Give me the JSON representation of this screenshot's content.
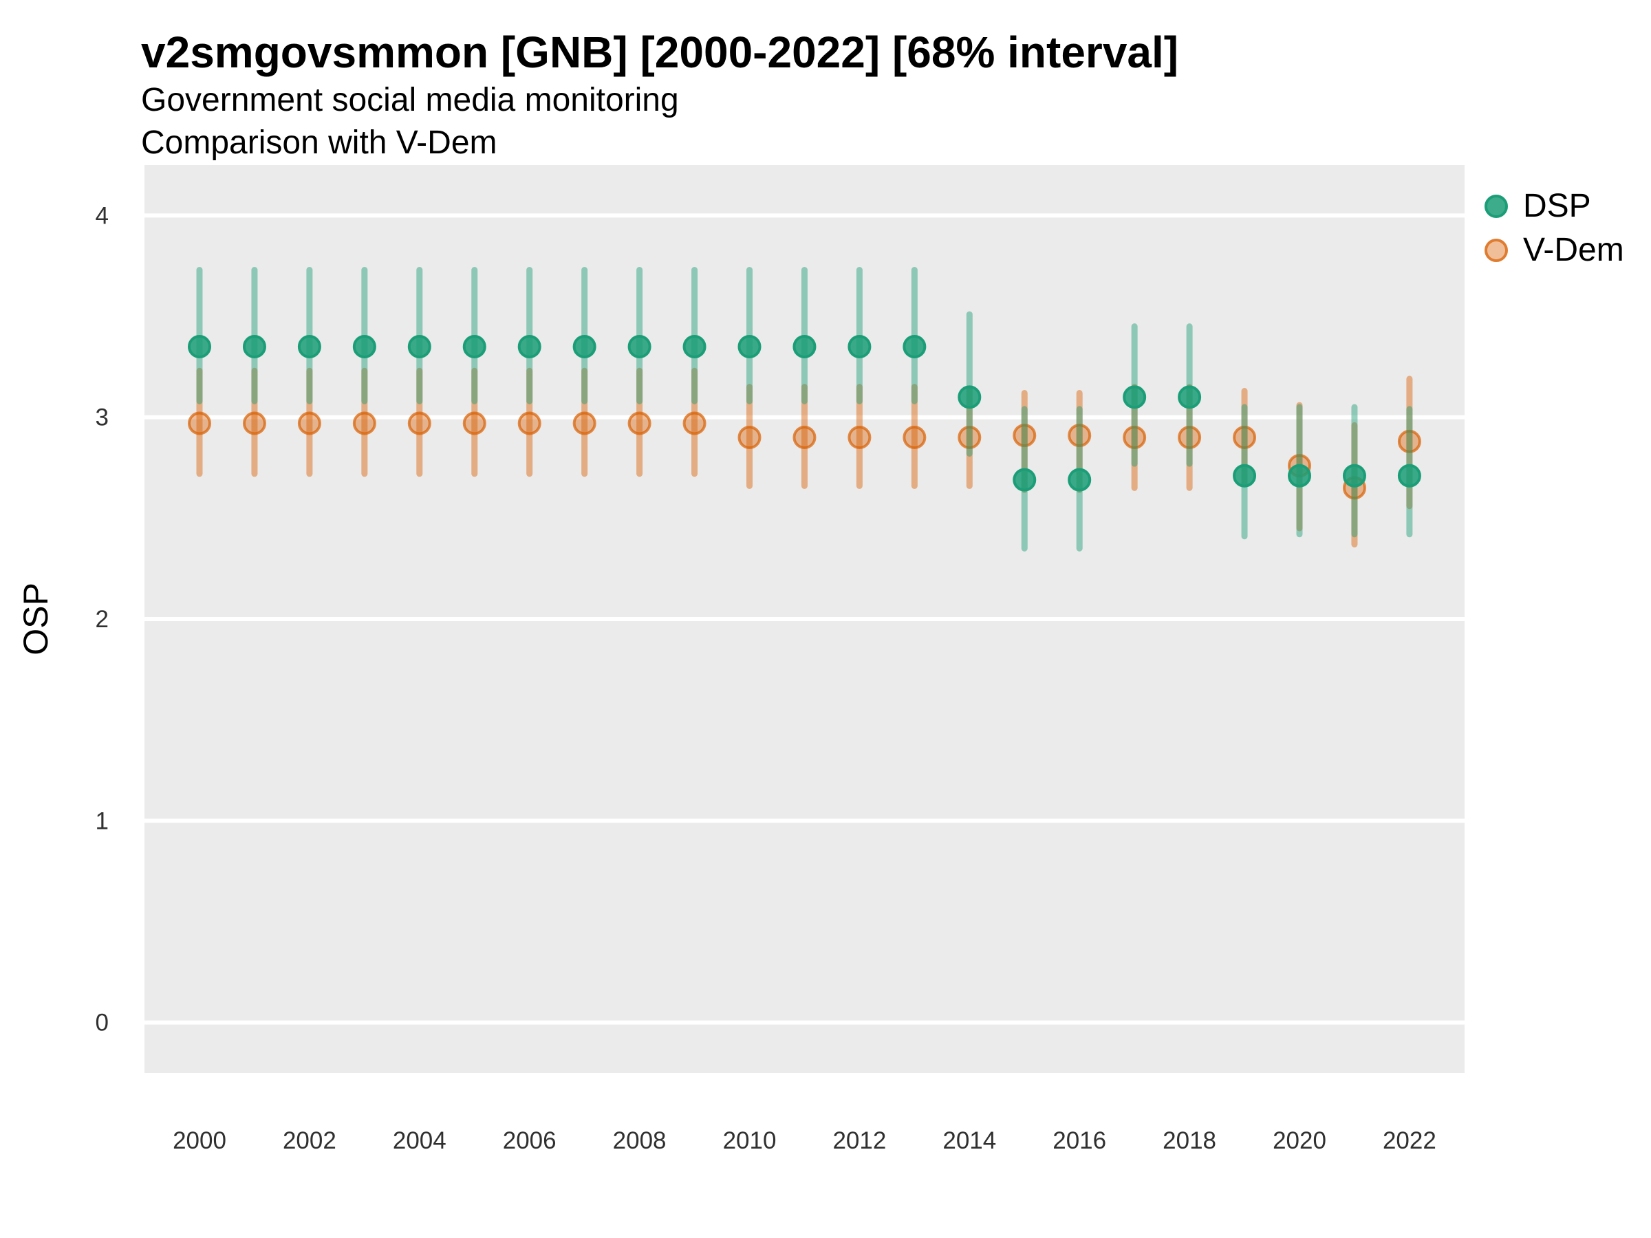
{
  "header": {
    "title": "v2smgovsmmon [GNB] [2000-2022] [68% interval]",
    "subtitle1": "Government social media monitoring",
    "subtitle2": "Comparison with V-Dem"
  },
  "axes": {
    "y_label": "OSP",
    "y_tick_labels": [
      "0",
      "1",
      "2",
      "3",
      "4"
    ],
    "x_tick_labels": [
      "2000",
      "2002",
      "2004",
      "2006",
      "2008",
      "2010",
      "2012",
      "2014",
      "2016",
      "2018",
      "2020",
      "2022"
    ]
  },
  "legend": {
    "items": [
      {
        "label": "DSP",
        "color": "#1B9E77"
      },
      {
        "label": "V-Dem",
        "color": "#D95F02"
      }
    ]
  },
  "colors": {
    "panel_background": "#EBEBEB",
    "gridline": "#FFFFFF",
    "tick_text": "#303030",
    "dsp_green": "#1B9E77",
    "vdem_orange": "#D95F02"
  },
  "chart_data": {
    "type": "pointrange",
    "title": "v2smgovsmmon [GNB] [2000-2022] [68% interval]",
    "subtitle": "Government social media monitoring / Comparison with V-Dem",
    "interval_level": "68%",
    "xlabel": "",
    "ylabel": "OSP",
    "ylim": [
      -0.25,
      4.25
    ],
    "y_ticks": [
      0,
      1,
      2,
      3,
      4
    ],
    "x_ticks": [
      2000,
      2002,
      2004,
      2006,
      2008,
      2010,
      2012,
      2014,
      2016,
      2018,
      2020,
      2022
    ],
    "grid": "major-horizontal-white-on-gray",
    "legend_position": "right-top",
    "series": [
      {
        "name": "DSP",
        "color": "#1B9E77",
        "points": [
          {
            "year": 2000,
            "est": 3.35,
            "lo": 3.08,
            "hi": 3.73
          },
          {
            "year": 2001,
            "est": 3.35,
            "lo": 3.08,
            "hi": 3.73
          },
          {
            "year": 2002,
            "est": 3.35,
            "lo": 3.08,
            "hi": 3.73
          },
          {
            "year": 2003,
            "est": 3.35,
            "lo": 3.08,
            "hi": 3.73
          },
          {
            "year": 2004,
            "est": 3.35,
            "lo": 3.08,
            "hi": 3.73
          },
          {
            "year": 2005,
            "est": 3.35,
            "lo": 3.08,
            "hi": 3.73
          },
          {
            "year": 2006,
            "est": 3.35,
            "lo": 3.08,
            "hi": 3.73
          },
          {
            "year": 2007,
            "est": 3.35,
            "lo": 3.08,
            "hi": 3.73
          },
          {
            "year": 2008,
            "est": 3.35,
            "lo": 3.08,
            "hi": 3.73
          },
          {
            "year": 2009,
            "est": 3.35,
            "lo": 3.08,
            "hi": 3.73
          },
          {
            "year": 2010,
            "est": 3.35,
            "lo": 3.08,
            "hi": 3.73
          },
          {
            "year": 2011,
            "est": 3.35,
            "lo": 3.08,
            "hi": 3.73
          },
          {
            "year": 2012,
            "est": 3.35,
            "lo": 3.08,
            "hi": 3.73
          },
          {
            "year": 2013,
            "est": 3.35,
            "lo": 3.08,
            "hi": 3.73
          },
          {
            "year": 2014,
            "est": 3.1,
            "lo": 2.82,
            "hi": 3.51
          },
          {
            "year": 2015,
            "est": 2.69,
            "lo": 2.35,
            "hi": 3.04
          },
          {
            "year": 2016,
            "est": 2.69,
            "lo": 2.35,
            "hi": 3.04
          },
          {
            "year": 2017,
            "est": 3.1,
            "lo": 2.77,
            "hi": 3.45
          },
          {
            "year": 2018,
            "est": 3.1,
            "lo": 2.77,
            "hi": 3.45
          },
          {
            "year": 2019,
            "est": 2.71,
            "lo": 2.41,
            "hi": 3.05
          },
          {
            "year": 2020,
            "est": 2.71,
            "lo": 2.42,
            "hi": 3.05
          },
          {
            "year": 2021,
            "est": 2.71,
            "lo": 2.42,
            "hi": 3.05
          },
          {
            "year": 2022,
            "est": 2.71,
            "lo": 2.42,
            "hi": 3.04
          }
        ]
      },
      {
        "name": "V-Dem",
        "color": "#D95F02",
        "points": [
          {
            "year": 2000,
            "est": 2.97,
            "lo": 2.72,
            "hi": 3.23
          },
          {
            "year": 2001,
            "est": 2.97,
            "lo": 2.72,
            "hi": 3.23
          },
          {
            "year": 2002,
            "est": 2.97,
            "lo": 2.72,
            "hi": 3.23
          },
          {
            "year": 2003,
            "est": 2.97,
            "lo": 2.72,
            "hi": 3.23
          },
          {
            "year": 2004,
            "est": 2.97,
            "lo": 2.72,
            "hi": 3.23
          },
          {
            "year": 2005,
            "est": 2.97,
            "lo": 2.72,
            "hi": 3.23
          },
          {
            "year": 2006,
            "est": 2.97,
            "lo": 2.72,
            "hi": 3.23
          },
          {
            "year": 2007,
            "est": 2.97,
            "lo": 2.72,
            "hi": 3.23
          },
          {
            "year": 2008,
            "est": 2.97,
            "lo": 2.72,
            "hi": 3.23
          },
          {
            "year": 2009,
            "est": 2.97,
            "lo": 2.72,
            "hi": 3.23
          },
          {
            "year": 2010,
            "est": 2.9,
            "lo": 2.66,
            "hi": 3.15
          },
          {
            "year": 2011,
            "est": 2.9,
            "lo": 2.66,
            "hi": 3.15
          },
          {
            "year": 2012,
            "est": 2.9,
            "lo": 2.66,
            "hi": 3.15
          },
          {
            "year": 2013,
            "est": 2.9,
            "lo": 2.66,
            "hi": 3.15
          },
          {
            "year": 2014,
            "est": 2.9,
            "lo": 2.66,
            "hi": 3.14
          },
          {
            "year": 2015,
            "est": 2.91,
            "lo": 2.64,
            "hi": 3.12
          },
          {
            "year": 2016,
            "est": 2.91,
            "lo": 2.64,
            "hi": 3.12
          },
          {
            "year": 2017,
            "est": 2.9,
            "lo": 2.65,
            "hi": 3.15
          },
          {
            "year": 2018,
            "est": 2.9,
            "lo": 2.65,
            "hi": 3.15
          },
          {
            "year": 2019,
            "est": 2.9,
            "lo": 2.67,
            "hi": 3.13
          },
          {
            "year": 2020,
            "est": 2.76,
            "lo": 2.45,
            "hi": 3.06
          },
          {
            "year": 2021,
            "est": 2.65,
            "lo": 2.37,
            "hi": 2.96
          },
          {
            "year": 2022,
            "est": 2.88,
            "lo": 2.56,
            "hi": 3.19
          }
        ]
      }
    ]
  }
}
